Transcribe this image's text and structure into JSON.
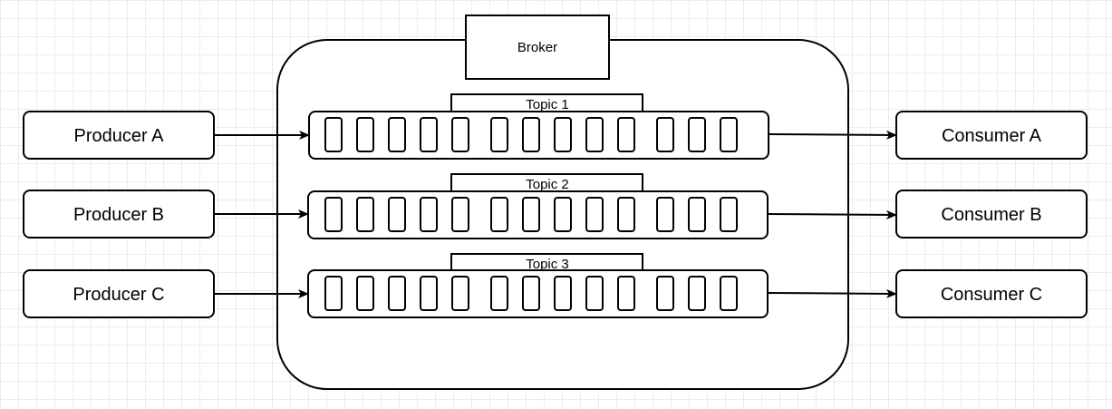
{
  "broker": {
    "label": "Broker"
  },
  "producers": [
    {
      "label": "Producer A"
    },
    {
      "label": "Producer B"
    },
    {
      "label": "Producer C"
    }
  ],
  "consumers": [
    {
      "label": "Consumer A"
    },
    {
      "label": "Consumer B"
    },
    {
      "label": "Consumer C"
    }
  ],
  "topics": [
    {
      "label": "Topic 1",
      "slots": 13
    },
    {
      "label": "Topic 2",
      "slots": 13
    },
    {
      "label": "Topic 3",
      "slots": 13
    }
  ],
  "colors": {
    "stroke": "#000000",
    "fill": "#ffffff",
    "grid": "#ececec"
  }
}
